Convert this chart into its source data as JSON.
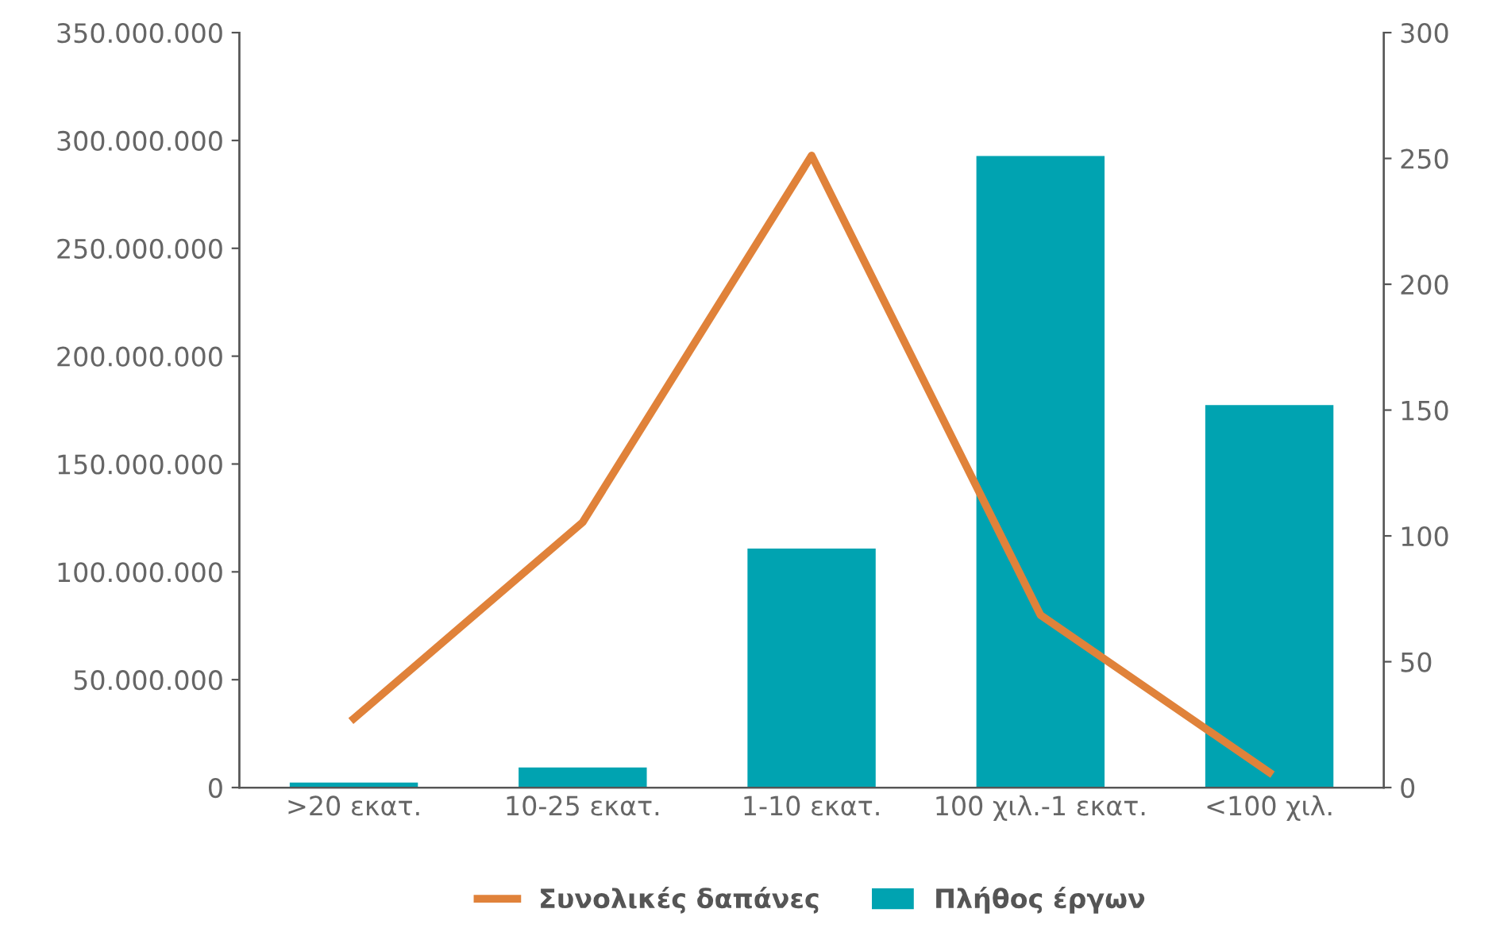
{
  "chart_data": {
    "type": "bar",
    "categories": [
      ">20 εκατ.",
      "10-25 εκατ.",
      "1-10 εκατ.",
      "100 χιλ.-1 εκατ.",
      "<100 χιλ."
    ],
    "series": [
      {
        "name": "Συνολικές δαπάνες",
        "type": "line",
        "color": "#e0823a",
        "values": [
          32000000,
          123000000,
          293000000,
          80000000,
          7000000
        ]
      },
      {
        "name": "Πλήθος έργων",
        "axis": "y2",
        "color": "#00a3b1",
        "values": [
          2,
          8,
          95,
          251,
          152
        ]
      }
    ],
    "ylim": [
      0,
      350000000
    ],
    "yticks": [
      {
        "value": 0,
        "label": "0"
      },
      {
        "value": 50000000,
        "label": "50.000.000"
      },
      {
        "value": 100000000,
        "label": "100.000.000"
      },
      {
        "value": 150000000,
        "label": "150.000.000"
      },
      {
        "value": 200000000,
        "label": "200.000.000"
      },
      {
        "value": 250000000,
        "label": "250.000.000"
      },
      {
        "value": 300000000,
        "label": "300.000.000"
      },
      {
        "value": 350000000,
        "label": "350.000.000"
      }
    ],
    "y2lim": [
      0,
      300
    ],
    "y2ticks": [
      0,
      50,
      100,
      150,
      200,
      250,
      300
    ],
    "grid": false,
    "legend": "bottom",
    "marker": "none",
    "line_style": "solid"
  }
}
